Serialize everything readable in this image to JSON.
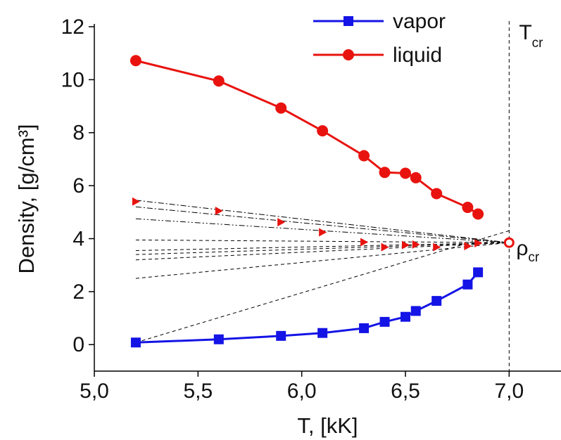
{
  "chart_data": {
    "type": "line",
    "xlabel": "T, [kK]",
    "ylabel": "Density, [g/cm³]",
    "x": [
      5.2,
      5.6,
      5.9,
      6.1,
      6.3,
      6.4,
      6.5,
      6.55,
      6.65,
      6.8,
      6.85
    ],
    "series": [
      {
        "name": "vapor",
        "color": "#1414e6",
        "marker": "square",
        "values": [
          0.08,
          0.2,
          0.33,
          0.44,
          0.62,
          0.86,
          1.05,
          1.27,
          1.65,
          2.27,
          2.73
        ]
      },
      {
        "name": "liquid",
        "color": "#e8130f",
        "marker": "circle",
        "values": [
          10.72,
          9.95,
          8.93,
          8.07,
          7.13,
          6.5,
          6.47,
          6.3,
          5.7,
          5.18,
          4.93
        ]
      }
    ],
    "diameter": {
      "color": "#e8130f",
      "marker": "triangle",
      "values": [
        5.4,
        5.05,
        4.62,
        4.24,
        3.87,
        3.68,
        3.76,
        3.78,
        3.68,
        3.72,
        3.83
      ]
    },
    "fit_lines": [
      {
        "x": [
          5.2,
          7.0
        ],
        "y": [
          5.45,
          3.85
        ],
        "dash": "dashdot"
      },
      {
        "x": [
          5.2,
          7.0
        ],
        "y": [
          5.2,
          3.85
        ],
        "dash": "dashdot"
      },
      {
        "x": [
          5.2,
          7.0
        ],
        "y": [
          4.75,
          3.85
        ],
        "dash": "dashdotdot"
      },
      {
        "x": [
          5.2,
          7.0
        ],
        "y": [
          3.95,
          3.85
        ],
        "dash": "dash"
      },
      {
        "x": [
          5.2,
          7.0
        ],
        "y": [
          3.55,
          3.85
        ],
        "dash": "dash"
      },
      {
        "x": [
          5.2,
          7.0
        ],
        "y": [
          3.4,
          3.85
        ],
        "dash": "dash"
      },
      {
        "x": [
          5.2,
          7.0
        ],
        "y": [
          3.2,
          3.85
        ],
        "dash": "dash"
      },
      {
        "x": [
          5.2,
          7.0
        ],
        "y": [
          2.5,
          3.85
        ],
        "dash": "dash"
      },
      {
        "x": [
          5.2,
          7.0
        ],
        "y": [
          0.08,
          4.3
        ],
        "dash": "dash"
      }
    ],
    "critical_point": {
      "x": 7.0,
      "y": 3.85,
      "color": "#e8130f",
      "label": "ρ",
      "sub": "cr"
    },
    "critical_temperature": {
      "x": 7.0,
      "label": "T",
      "sub": "cr"
    },
    "xlim": [
      5.0,
      7.25
    ],
    "ylim": [
      -1,
      12
    ],
    "xticks": [
      {
        "value": 5.0,
        "label": "5,0"
      },
      {
        "value": 5.5,
        "label": "5,5"
      },
      {
        "value": 6.0,
        "label": "6,0"
      },
      {
        "value": 6.5,
        "label": "6,5"
      },
      {
        "value": 7.0,
        "label": "7,0"
      }
    ],
    "yticks": [
      0,
      2,
      4,
      6,
      8,
      10,
      12
    ],
    "legend": "top"
  }
}
